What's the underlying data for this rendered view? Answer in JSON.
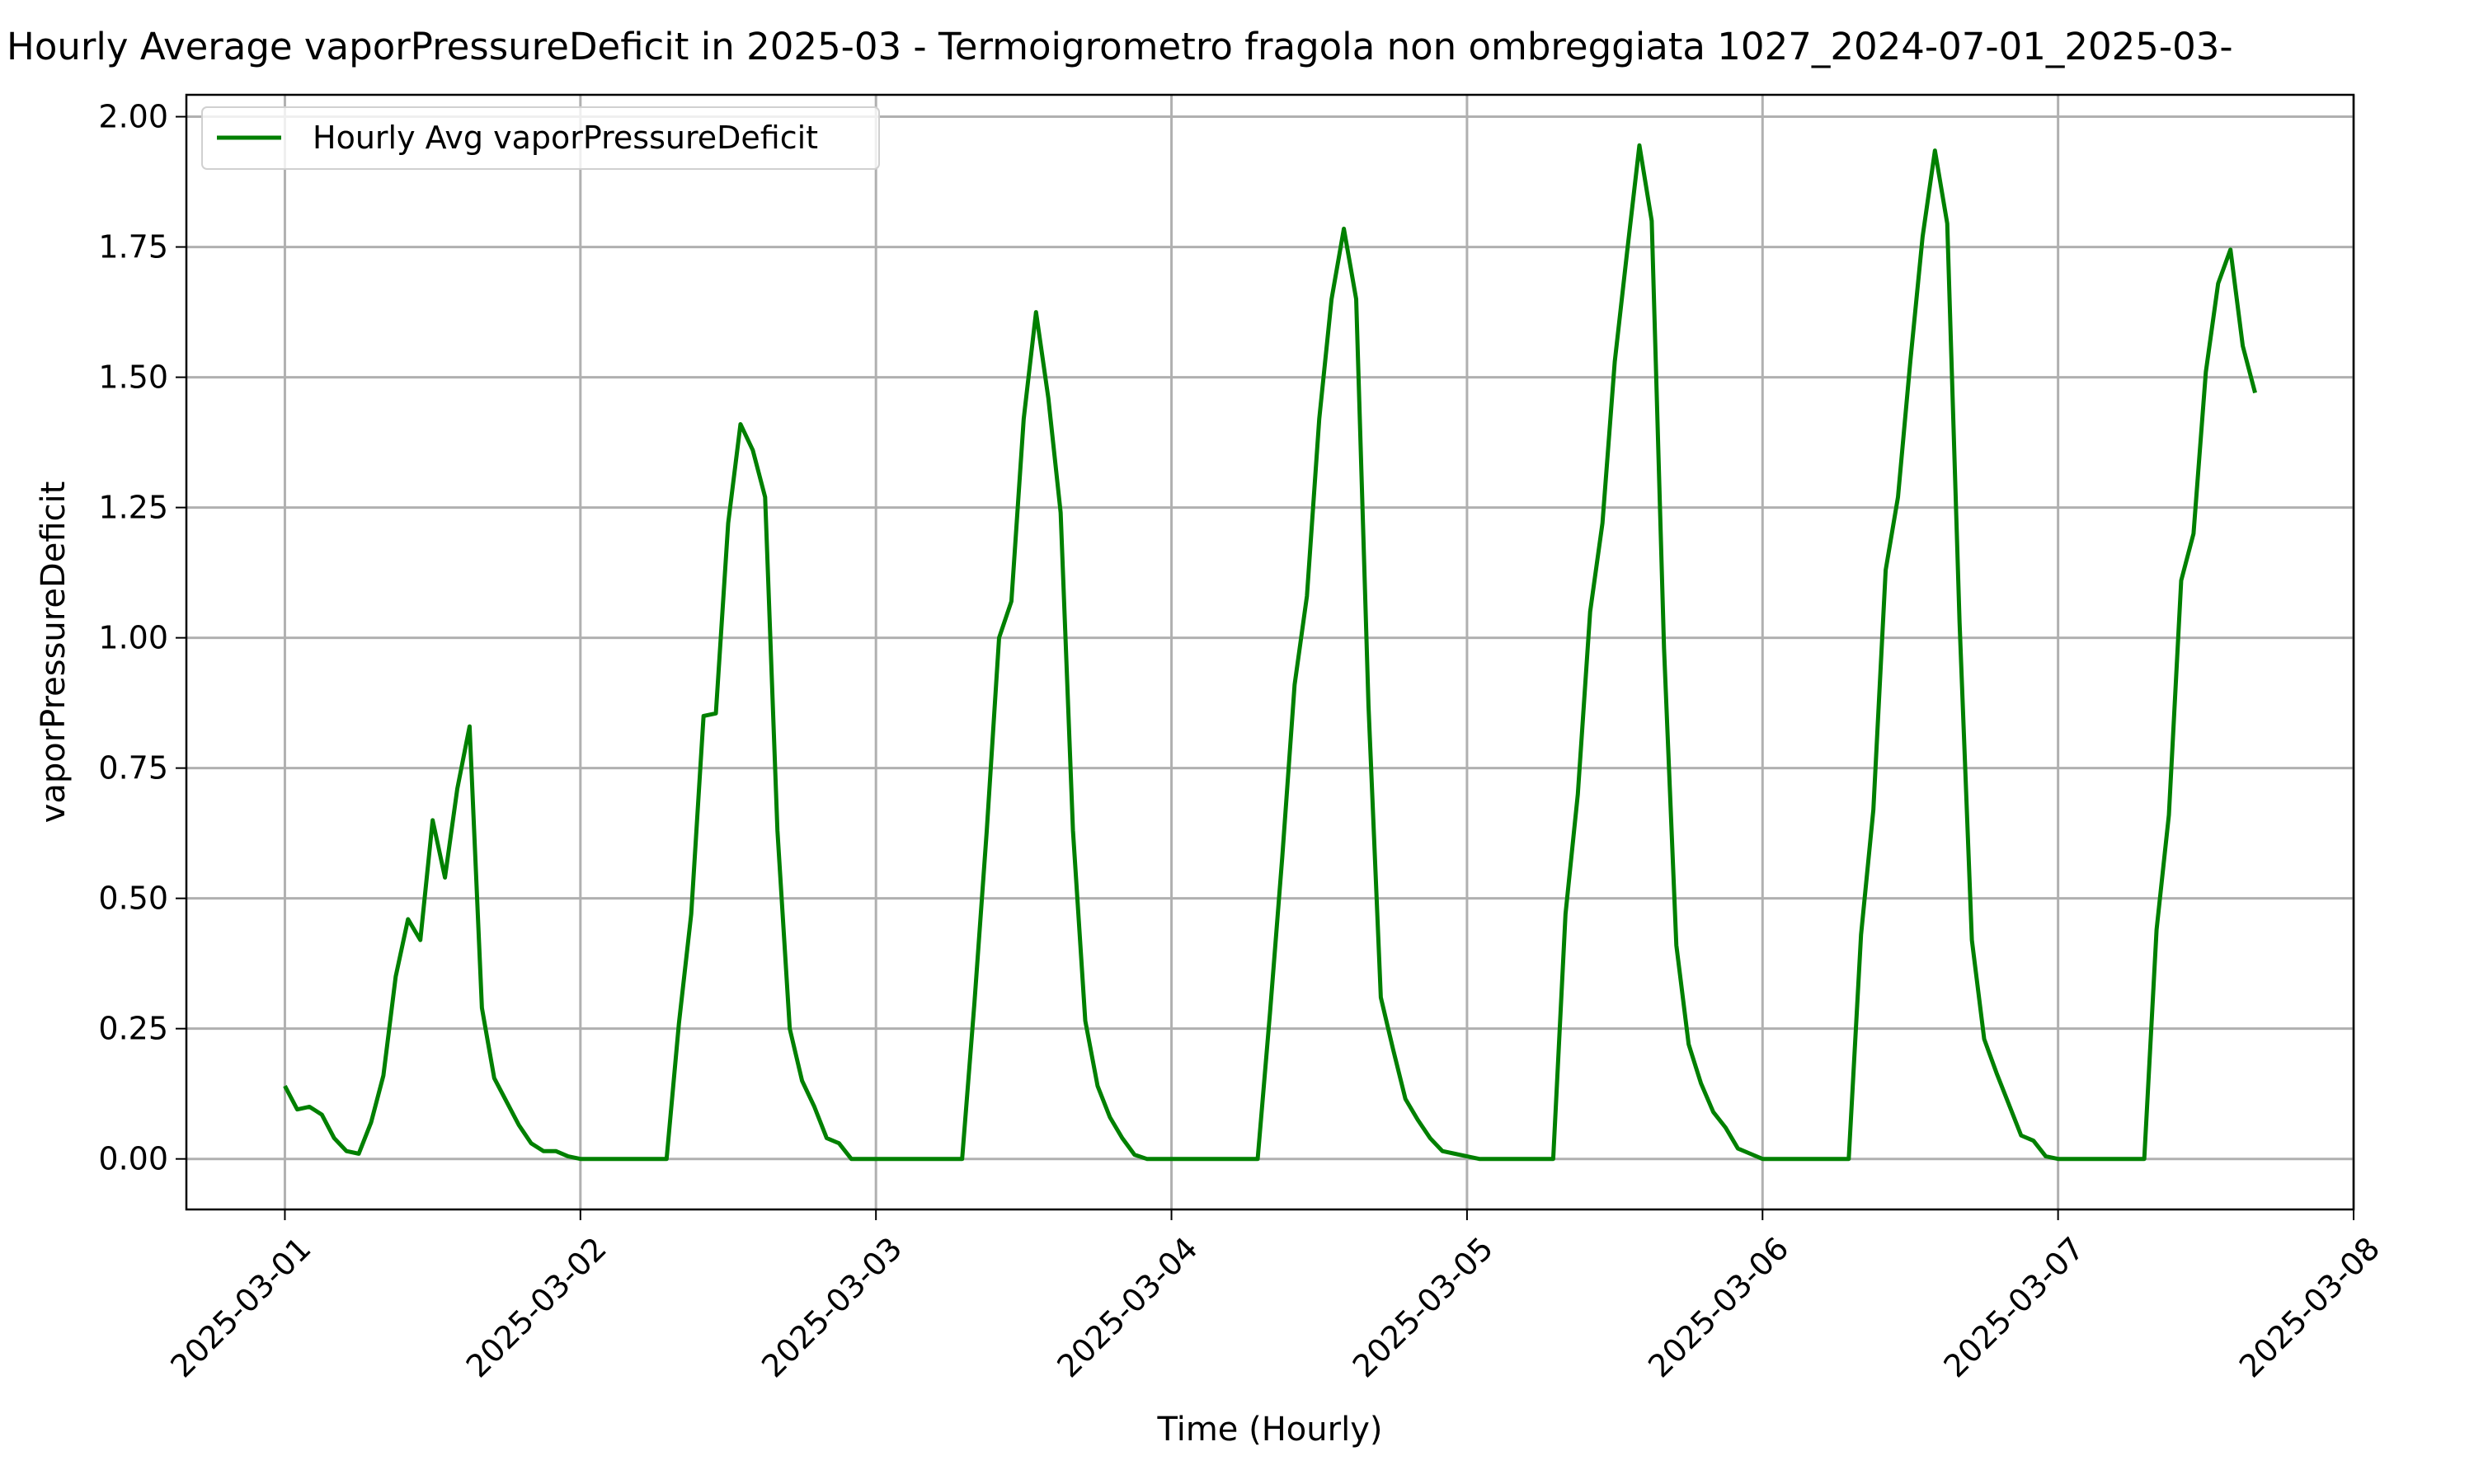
{
  "chart_data": {
    "type": "line",
    "title": "Hourly Average vaporPressureDeficit in 2025-03 - Termoigrometro fragola non ombreggiata 1027_2024-07-01_2025-03-",
    "x_label": "Time (Hourly)",
    "y_label": "vaporPressureDeficit",
    "x": [
      "2025-03-01 00:00",
      "2025-03-01 01:00",
      "2025-03-01 02:00",
      "2025-03-01 03:00",
      "2025-03-01 04:00",
      "2025-03-01 05:00",
      "2025-03-01 06:00",
      "2025-03-01 07:00",
      "2025-03-01 08:00",
      "2025-03-01 09:00",
      "2025-03-01 10:00",
      "2025-03-01 11:00",
      "2025-03-01 12:00",
      "2025-03-01 13:00",
      "2025-03-01 14:00",
      "2025-03-01 15:00",
      "2025-03-01 16:00",
      "2025-03-01 17:00",
      "2025-03-01 18:00",
      "2025-03-01 19:00",
      "2025-03-01 20:00",
      "2025-03-01 21:00",
      "2025-03-01 22:00",
      "2025-03-01 23:00",
      "2025-03-02 00:00",
      "2025-03-02 01:00",
      "2025-03-02 02:00",
      "2025-03-02 03:00",
      "2025-03-02 04:00",
      "2025-03-02 05:00",
      "2025-03-02 06:00",
      "2025-03-02 07:00",
      "2025-03-02 08:00",
      "2025-03-02 09:00",
      "2025-03-02 10:00",
      "2025-03-02 11:00",
      "2025-03-02 12:00",
      "2025-03-02 13:00",
      "2025-03-02 14:00",
      "2025-03-02 15:00",
      "2025-03-02 16:00",
      "2025-03-02 17:00",
      "2025-03-02 18:00",
      "2025-03-02 19:00",
      "2025-03-02 20:00",
      "2025-03-02 21:00",
      "2025-03-02 22:00",
      "2025-03-02 23:00",
      "2025-03-03 00:00",
      "2025-03-03 01:00",
      "2025-03-03 02:00",
      "2025-03-03 03:00",
      "2025-03-03 04:00",
      "2025-03-03 05:00",
      "2025-03-03 06:00",
      "2025-03-03 07:00",
      "2025-03-03 08:00",
      "2025-03-03 09:00",
      "2025-03-03 10:00",
      "2025-03-03 11:00",
      "2025-03-03 12:00",
      "2025-03-03 13:00",
      "2025-03-03 14:00",
      "2025-03-03 15:00",
      "2025-03-03 16:00",
      "2025-03-03 17:00",
      "2025-03-03 18:00",
      "2025-03-03 19:00",
      "2025-03-03 20:00",
      "2025-03-03 21:00",
      "2025-03-03 22:00",
      "2025-03-03 23:00",
      "2025-03-04 00:00",
      "2025-03-04 01:00",
      "2025-03-04 02:00",
      "2025-03-04 03:00",
      "2025-03-04 04:00",
      "2025-03-04 05:00",
      "2025-03-04 06:00",
      "2025-03-04 07:00",
      "2025-03-04 08:00",
      "2025-03-04 09:00",
      "2025-03-04 10:00",
      "2025-03-04 11:00",
      "2025-03-04 12:00",
      "2025-03-04 13:00",
      "2025-03-04 14:00",
      "2025-03-04 15:00",
      "2025-03-04 16:00",
      "2025-03-04 17:00",
      "2025-03-04 18:00",
      "2025-03-04 19:00",
      "2025-03-04 20:00",
      "2025-03-04 21:00",
      "2025-03-04 22:00",
      "2025-03-04 23:00",
      "2025-03-05 00:00",
      "2025-03-05 01:00",
      "2025-03-05 02:00",
      "2025-03-05 03:00",
      "2025-03-05 04:00",
      "2025-03-05 05:00",
      "2025-03-05 06:00",
      "2025-03-05 07:00",
      "2025-03-05 08:00",
      "2025-03-05 09:00",
      "2025-03-05 10:00",
      "2025-03-05 11:00",
      "2025-03-05 12:00",
      "2025-03-05 13:00",
      "2025-03-05 14:00",
      "2025-03-05 15:00",
      "2025-03-05 16:00",
      "2025-03-05 17:00",
      "2025-03-05 18:00",
      "2025-03-05 19:00",
      "2025-03-05 20:00",
      "2025-03-05 21:00",
      "2025-03-05 22:00",
      "2025-03-05 23:00",
      "2025-03-06 00:00",
      "2025-03-06 01:00",
      "2025-03-06 02:00",
      "2025-03-06 03:00",
      "2025-03-06 04:00",
      "2025-03-06 05:00",
      "2025-03-06 06:00",
      "2025-03-06 07:00",
      "2025-03-06 08:00",
      "2025-03-06 09:00",
      "2025-03-06 10:00",
      "2025-03-06 11:00",
      "2025-03-06 12:00",
      "2025-03-06 13:00",
      "2025-03-06 14:00",
      "2025-03-06 15:00",
      "2025-03-06 16:00",
      "2025-03-06 17:00",
      "2025-03-06 18:00",
      "2025-03-06 19:00",
      "2025-03-06 20:00",
      "2025-03-06 21:00",
      "2025-03-06 22:00",
      "2025-03-06 23:00",
      "2025-03-07 00:00",
      "2025-03-07 01:00",
      "2025-03-07 02:00",
      "2025-03-07 03:00",
      "2025-03-07 04:00",
      "2025-03-07 05:00",
      "2025-03-07 06:00",
      "2025-03-07 07:00",
      "2025-03-07 08:00",
      "2025-03-07 09:00",
      "2025-03-07 10:00",
      "2025-03-07 11:00",
      "2025-03-07 12:00",
      "2025-03-07 13:00",
      "2025-03-07 14:00",
      "2025-03-07 15:00",
      "2025-03-07 16:00"
    ],
    "series": [
      {
        "name": "Hourly Avg vaporPressureDeficit",
        "color": "#008000",
        "values": [
          0.14,
          0.095,
          0.1,
          0.085,
          0.04,
          0.015,
          0.01,
          0.07,
          0.16,
          0.35,
          0.46,
          0.42,
          0.65,
          0.54,
          0.71,
          0.83,
          0.29,
          0.155,
          0.11,
          0.065,
          0.03,
          0.015,
          0.015,
          0.005,
          0,
          0,
          0,
          0,
          0,
          0,
          0,
          0,
          0.26,
          0.47,
          0.85,
          0.855,
          1.22,
          1.41,
          1.36,
          1.27,
          0.63,
          0.25,
          0.15,
          0.1,
          0.04,
          0.03,
          0,
          0,
          0,
          0,
          0,
          0,
          0,
          0,
          0,
          0,
          0.3,
          0.63,
          1.0,
          1.07,
          1.42,
          1.625,
          1.46,
          1.24,
          0.63,
          0.265,
          0.14,
          0.08,
          0.04,
          0.008,
          0,
          0,
          0,
          0,
          0,
          0,
          0,
          0,
          0,
          0,
          0.28,
          0.58,
          0.91,
          1.08,
          1.42,
          1.65,
          1.785,
          1.65,
          0.87,
          0.31,
          0.21,
          0.115,
          0.075,
          0.04,
          0.015,
          0.01,
          0.005,
          0,
          0,
          0,
          0,
          0,
          0,
          0,
          0.47,
          0.7,
          1.05,
          1.22,
          1.53,
          1.74,
          1.945,
          1.8,
          0.98,
          0.41,
          0.22,
          0.145,
          0.09,
          0.06,
          0.02,
          0.01,
          0,
          0,
          0,
          0,
          0,
          0,
          0,
          0,
          0.43,
          0.67,
          1.13,
          1.27,
          1.53,
          1.77,
          1.935,
          1.795,
          1.03,
          0.42,
          0.23,
          0.165,
          0.105,
          0.045,
          0.035,
          0.005,
          0,
          0,
          0,
          0,
          0,
          0,
          0,
          0,
          0.44,
          0.66,
          1.11,
          1.2,
          1.51,
          1.68,
          1.745,
          1.56,
          1.47
        ]
      }
    ],
    "xlim": [
      "2025-02-28 16:00",
      "2025-03-08 00:00"
    ],
    "xticks": [
      "2025-03-01",
      "2025-03-02",
      "2025-03-03",
      "2025-03-04",
      "2025-03-05",
      "2025-03-06",
      "2025-03-07",
      "2025-03-08"
    ],
    "ylim": [
      -0.097,
      2.042
    ],
    "yticks": [
      {
        "value": 0,
        "label": "0.00"
      },
      {
        "value": 0.25,
        "label": "0.25"
      },
      {
        "value": 0.5,
        "label": "0.50"
      },
      {
        "value": 0.75,
        "label": "0.75"
      },
      {
        "value": 1,
        "label": "1.00"
      },
      {
        "value": 1.25,
        "label": "1.25"
      },
      {
        "value": 1.5,
        "label": "1.50"
      },
      {
        "value": 1.75,
        "label": "1.75"
      },
      {
        "value": 2,
        "label": "2.00"
      }
    ],
    "grid": true,
    "legend": "upper left"
  }
}
